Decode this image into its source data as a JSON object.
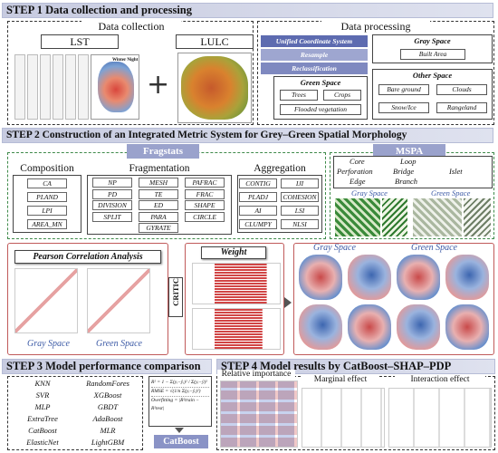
{
  "step1": {
    "title": "STEP 1  Data collection and processing",
    "collection_title": "Data collection",
    "lst_label": "LST",
    "lulc_label": "LULC",
    "lst_legend": "Winter Night",
    "plus": "+",
    "processing_title": "Data processing",
    "process_pills": [
      "Unified Coordinate System",
      "Resample",
      "Reclassification"
    ],
    "gray_space": {
      "title": "Gray Space",
      "items": [
        "Built Area"
      ]
    },
    "green_space": {
      "title": "Green Space",
      "items": [
        "Trees",
        "Crops",
        "Flooded vegetation"
      ]
    },
    "other_space": {
      "title": "Other Space",
      "items": [
        "Bare ground",
        "Clouds",
        "Snow/Ice",
        "Rangeland"
      ]
    }
  },
  "step2": {
    "title": "STEP 2  Construction of an Integrated Metric System for Grey–Green Spatial Morphology",
    "fragstats": "Fragstats",
    "mspa": "MSPA",
    "composition": {
      "title": "Composition",
      "metrics": [
        "CA",
        "PLAND",
        "LPI",
        "AREA_MN"
      ]
    },
    "fragmentation": {
      "title": "Fragmentation",
      "metrics": [
        "NP",
        "MESH",
        "PAFRAC",
        "PD",
        "TE",
        "FRAC",
        "DIVISION",
        "ED",
        "SHAPE",
        "SPLIT",
        "PARA",
        "CIRCLE",
        "GYRATE"
      ]
    },
    "aggregation": {
      "title": "Aggregation",
      "metrics": [
        "CONTIG",
        "IJI",
        "PLADJ",
        "COHESION",
        "AI",
        "LSI",
        "CLUMPY",
        "NLSI"
      ]
    },
    "mspa_classes": [
      "Core",
      "Loop",
      "Perforation",
      "Bridge",
      "Islet",
      "Edge",
      "Branch"
    ],
    "mspa_gray": "Gray Space",
    "mspa_green": "Green Space",
    "pearson": "Pearson Correlation Analysis",
    "pearson_gray": "Gray Space",
    "pearson_green": "Green Space",
    "weight": "Weight",
    "critic": "CRITIC",
    "maps_gray": "Gray Space",
    "maps_green": "Green Space"
  },
  "step3": {
    "title": "STEP 3 Model performance comparison",
    "models": [
      "KNN",
      "RandomFores",
      "SVR",
      "XGBoost",
      "MLP",
      "GBDT",
      "ExtraTree",
      "AdaBoost",
      "CatBoost",
      "MLR",
      "ElasticNet",
      "LightGBM"
    ],
    "winner": "CatBoost"
  },
  "step4": {
    "title": "STEP 4  Model results by CatBoost–SHAP–PDP",
    "panels": [
      "Relative importance",
      "Marginal effect",
      "Interaction effect"
    ]
  },
  "colors": {
    "step_bar": "#c7cbe0",
    "pill": "#8a93c6",
    "red_frame": "#c05a5a",
    "green_frame": "#3f8a4a",
    "shap_title": "#3c5aa6"
  }
}
